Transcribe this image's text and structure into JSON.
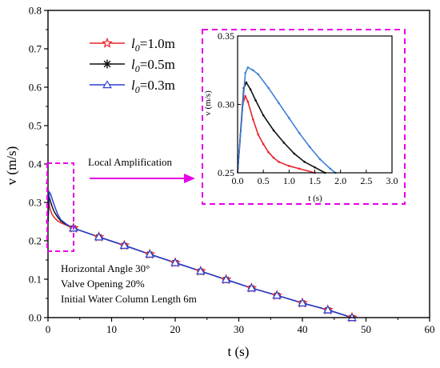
{
  "chart_data": [
    {
      "type": "line",
      "title": "",
      "xlabel": "t (s)",
      "ylabel": "v (m/s)",
      "xlim": [
        0,
        60
      ],
      "ylim": [
        0,
        0.8
      ],
      "xticks": [
        0,
        10,
        20,
        30,
        40,
        50,
        60
      ],
      "xtick_labels": [
        "0",
        "10",
        "20",
        "30",
        "40",
        "50",
        "60"
      ],
      "yticks": [
        0,
        0.1,
        0.2,
        0.3,
        0.4,
        0.5,
        0.6,
        0.7,
        0.8
      ],
      "ytick_labels": [
        "0.0",
        "0.1",
        "0.2",
        "0.3",
        "0.4",
        "0.5",
        "0.6",
        "0.7",
        "0.8"
      ],
      "grid": false,
      "legend_position": "top-left",
      "series": [
        {
          "name_prefix": "l",
          "name_sub": "0",
          "name_suffix": "=1.0m",
          "name": "l0=1.0m",
          "color": "#e8242b",
          "marker": "star",
          "x": [
            0,
            0.15,
            0.3,
            0.6,
            1.0,
            1.5,
            2.0,
            3.0,
            4.0,
            8.0,
            12.0,
            16.0,
            20.0,
            24.0,
            28.0,
            32.0,
            36.0,
            40.0,
            44.0,
            47.8
          ],
          "y": [
            0.25,
            0.305,
            0.285,
            0.27,
            0.26,
            0.252,
            0.247,
            0.24,
            0.233,
            0.21,
            0.188,
            0.165,
            0.143,
            0.121,
            0.099,
            0.077,
            0.058,
            0.038,
            0.02,
            0.0
          ]
        },
        {
          "name_prefix": "l",
          "name_sub": "0",
          "name_suffix": "=0.5m",
          "name": "l0=0.5m",
          "color": "#111111",
          "marker": "asterisk",
          "x": [
            0,
            0.17,
            0.35,
            0.7,
            1.0,
            1.5,
            2.0,
            3.0,
            4.0,
            8.0,
            12.0,
            16.0,
            20.0,
            24.0,
            28.0,
            32.0,
            36.0,
            40.0,
            44.0,
            47.8
          ],
          "y": [
            0.25,
            0.316,
            0.305,
            0.287,
            0.275,
            0.262,
            0.252,
            0.241,
            0.233,
            0.21,
            0.188,
            0.165,
            0.143,
            0.121,
            0.099,
            0.077,
            0.058,
            0.038,
            0.02,
            0.0
          ]
        },
        {
          "name_prefix": "l",
          "name_sub": "0",
          "name_suffix": "=0.3m",
          "name": "l0=0.3m",
          "color": "#2c3fd6",
          "marker": "triangle",
          "x": [
            0,
            0.2,
            0.4,
            0.7,
            1.0,
            1.5,
            2.0,
            3.0,
            4.0,
            8.0,
            12.0,
            16.0,
            20.0,
            24.0,
            28.0,
            32.0,
            36.0,
            40.0,
            44.0,
            47.8
          ],
          "y": [
            0.25,
            0.327,
            0.322,
            0.307,
            0.292,
            0.27,
            0.255,
            0.242,
            0.233,
            0.21,
            0.188,
            0.165,
            0.143,
            0.121,
            0.099,
            0.077,
            0.058,
            0.038,
            0.02,
            0.0
          ]
        }
      ],
      "annotations": [
        "Local Amplification",
        "Horizontal Angle 30°",
        "Valve Opening 20%",
        "Initial Water Column Length 6m"
      ]
    },
    {
      "type": "line",
      "title": "",
      "xlabel": "t (s)",
      "ylabel": "v (m/s)",
      "xlim": [
        0,
        3.0
      ],
      "ylim": [
        0.25,
        0.35
      ],
      "xticks": [
        0,
        0.5,
        1.0,
        1.5,
        2.0,
        2.5,
        3.0
      ],
      "xtick_labels": [
        "0.0",
        "0.5",
        "1.0",
        "1.5",
        "2.0",
        "2.5",
        "3.0"
      ],
      "yticks": [
        0.25,
        0.3,
        0.35
      ],
      "ytick_labels": [
        "0.25",
        "0.30",
        "0.35"
      ],
      "series": [
        {
          "name": "l0=1.0m",
          "color": "#e8242b",
          "x": [
            0,
            0.1,
            0.15,
            0.2,
            0.3,
            0.4,
            0.5,
            0.6,
            0.7,
            0.8,
            1.0,
            1.2,
            1.5
          ],
          "y": [
            0.25,
            0.3,
            0.306,
            0.302,
            0.289,
            0.278,
            0.271,
            0.265,
            0.261,
            0.258,
            0.255,
            0.253,
            0.25
          ]
        },
        {
          "name": "l0=0.5m",
          "color": "#111111",
          "x": [
            0,
            0.12,
            0.17,
            0.25,
            0.35,
            0.5,
            0.7,
            0.9,
            1.1,
            1.3,
            1.5,
            1.7
          ],
          "y": [
            0.25,
            0.312,
            0.316,
            0.311,
            0.303,
            0.292,
            0.281,
            0.272,
            0.264,
            0.258,
            0.254,
            0.25
          ]
        },
        {
          "name": "l0=0.3m",
          "color": "#3d80d8",
          "x": [
            0,
            0.15,
            0.2,
            0.3,
            0.4,
            0.6,
            0.8,
            1.0,
            1.2,
            1.4,
            1.6,
            1.8,
            1.9
          ],
          "y": [
            0.25,
            0.323,
            0.327,
            0.325,
            0.322,
            0.312,
            0.301,
            0.29,
            0.279,
            0.269,
            0.26,
            0.253,
            0.25
          ]
        }
      ]
    }
  ]
}
